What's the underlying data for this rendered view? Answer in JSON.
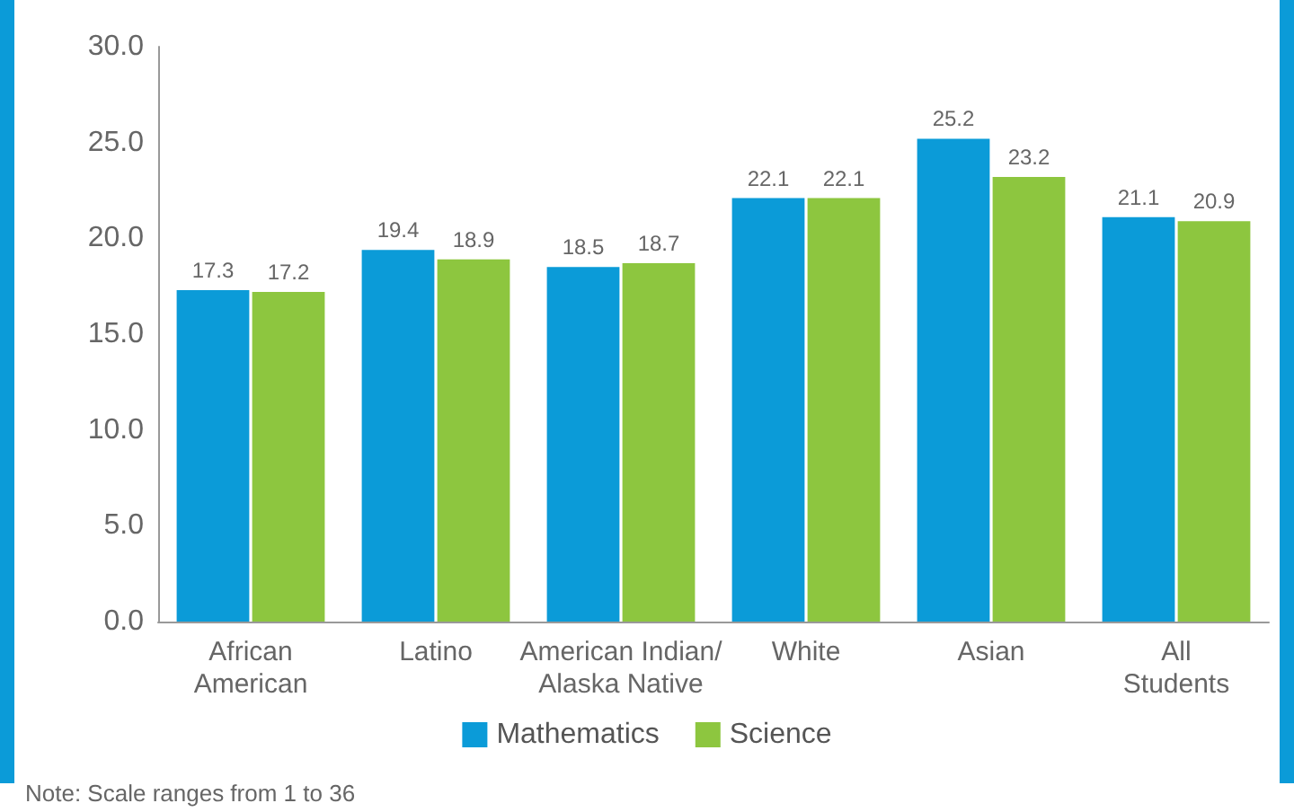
{
  "chart_data": {
    "type": "bar",
    "categories": [
      "African\nAmerican",
      "Latino",
      "American Indian/\nAlaska Native",
      "White",
      "Asian",
      "All\nStudents"
    ],
    "series": [
      {
        "name": "Mathematics",
        "color": "#0b9bd8",
        "values": [
          17.3,
          19.4,
          18.5,
          22.1,
          25.2,
          21.1
        ]
      },
      {
        "name": "Science",
        "color": "#8dc63f",
        "values": [
          17.2,
          18.9,
          18.7,
          22.1,
          23.2,
          20.9
        ]
      }
    ],
    "ylim": [
      0,
      30
    ],
    "yticks": [
      {
        "value": 0,
        "label": "0.0"
      },
      {
        "value": 5,
        "label": "5.0"
      },
      {
        "value": 10,
        "label": "10.0"
      },
      {
        "value": 15,
        "label": "15.0"
      },
      {
        "value": 20,
        "label": "20.0"
      },
      {
        "value": 25,
        "label": "25.0"
      },
      {
        "value": 30,
        "label": "30.0"
      }
    ],
    "grid": false,
    "legend": "bottom",
    "data_labels": true,
    "annotations": [
      "Note: Scale ranges from 1 to 36"
    ]
  }
}
